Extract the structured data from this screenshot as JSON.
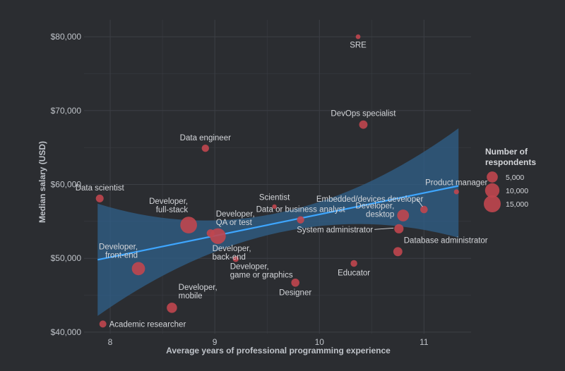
{
  "chart_data": {
    "type": "scatter",
    "xlabel": "Average years of professional programming experience",
    "ylabel": "Median salary (USD)",
    "xlim": [
      7.75,
      11.45
    ],
    "ylim": [
      39800,
      82300
    ],
    "x_ticks": [
      8,
      9,
      10,
      11
    ],
    "x_tick_labels": [
      "8",
      "9",
      "10",
      "11"
    ],
    "y_ticks": [
      40000,
      50000,
      60000,
      70000,
      80000
    ],
    "y_tick_labels": [
      "$40,000",
      "$50,000",
      "$60,000",
      "$70,000",
      "$80,000"
    ],
    "legend": {
      "title_lines": [
        "Number of",
        "respondents"
      ],
      "entries": [
        {
          "label": "5,000",
          "value": 5000
        },
        {
          "label": "10,000",
          "value": 10000
        },
        {
          "label": "15,000",
          "value": 15000
        }
      ]
    },
    "trend": {
      "x": [
        7.88,
        11.33
      ],
      "y": [
        49800,
        59800
      ],
      "ci_lower": [
        42200,
        52800
      ],
      "ci_upper": [
        57400,
        67600
      ]
    },
    "points": [
      {
        "label": "SRE",
        "x": 10.37,
        "y": 80000,
        "n": 200,
        "label_lines": [
          "SRE"
        ],
        "label_pos": "below"
      },
      {
        "label": "DevOps specialist",
        "x": 10.42,
        "y": 68100,
        "n": 2200,
        "label_lines": [
          "DevOps specialist"
        ],
        "label_pos": "above"
      },
      {
        "label": "Data engineer",
        "x": 8.91,
        "y": 64900,
        "n": 1400,
        "label_lines": [
          "Data engineer"
        ],
        "label_pos": "above"
      },
      {
        "label": "Data scientist",
        "x": 7.9,
        "y": 58100,
        "n": 1700,
        "label_lines": [
          "Data scientist"
        ],
        "label_pos": "above"
      },
      {
        "label": "Product manager",
        "x": 11.31,
        "y": 59000,
        "n": 300,
        "label_lines": [
          "Product manager"
        ],
        "label_pos": "above"
      },
      {
        "label": "Scientist",
        "x": 9.57,
        "y": 57000,
        "n": 150,
        "label_lines": [
          "Scientist"
        ],
        "label_pos": "above"
      },
      {
        "label": "Embedded/devices developer",
        "x": 11.0,
        "y": 56600,
        "n": 1500,
        "label_lines": [
          "Embedded/devices developer"
        ],
        "label_pos": "above-left"
      },
      {
        "label": "Data or business analyst",
        "x": 9.82,
        "y": 55200,
        "n": 1400,
        "label_lines": [
          "Data or business analyst"
        ],
        "label_pos": "above"
      },
      {
        "label": "Developer, full-stack",
        "x": 8.75,
        "y": 54500,
        "n": 14500,
        "label_lines": [
          "Developer,",
          "full-stack"
        ],
        "label_pos": "above-left"
      },
      {
        "label": "Developer, QA or test",
        "x": 8.96,
        "y": 53400,
        "n": 1700,
        "label_lines": [
          "Developer,",
          "QA or test"
        ],
        "label_pos": "above-right"
      },
      {
        "label": "Developer, back-end",
        "x": 9.03,
        "y": 53000,
        "n": 12500,
        "label_lines": [
          "Developer,",
          "back-end"
        ],
        "label_pos": "below-right"
      },
      {
        "label": "Developer, desktop",
        "x": 10.8,
        "y": 55800,
        "n": 6000,
        "label_lines": [
          "Developer,",
          "desktop"
        ],
        "label_pos": "left"
      },
      {
        "label": "System administrator",
        "x": 10.76,
        "y": 54000,
        "n": 3000,
        "label_lines": [
          "System administrator"
        ],
        "label_pos": "left-below"
      },
      {
        "label": "Database administrator",
        "x": 10.75,
        "y": 50900,
        "n": 2800,
        "label_lines": [
          "Database administrator"
        ],
        "label_pos": "above-right"
      },
      {
        "label": "Developer, front-end",
        "x": 8.27,
        "y": 48600,
        "n": 8000,
        "label_lines": [
          "Developer,",
          "front-end"
        ],
        "label_pos": "above-left"
      },
      {
        "label": "Developer, game or graphics",
        "x": 9.2,
        "y": 49900,
        "n": 600,
        "label_lines": [
          "Developer,",
          "game or graphics"
        ],
        "label_pos": "below-right"
      },
      {
        "label": "Educator",
        "x": 10.33,
        "y": 49300,
        "n": 1000,
        "label_lines": [
          "Educator"
        ],
        "label_pos": "below"
      },
      {
        "label": "Designer",
        "x": 9.77,
        "y": 46700,
        "n": 2000,
        "label_lines": [
          "Designer"
        ],
        "label_pos": "below"
      },
      {
        "label": "Developer, mobile",
        "x": 8.59,
        "y": 43300,
        "n": 4000,
        "label_lines": [
          "Developer,",
          "mobile"
        ],
        "label_pos": "above-right"
      },
      {
        "label": "Academic researcher",
        "x": 7.93,
        "y": 41100,
        "n": 1200,
        "label_lines": [
          "Academic researcher"
        ],
        "label_pos": "right"
      }
    ],
    "colors": {
      "background": "#2b2d31",
      "grid": "#3c3f45",
      "point": "#c0464f",
      "trend": "#3ea6ff",
      "ribbon": "#2f5e86"
    }
  }
}
